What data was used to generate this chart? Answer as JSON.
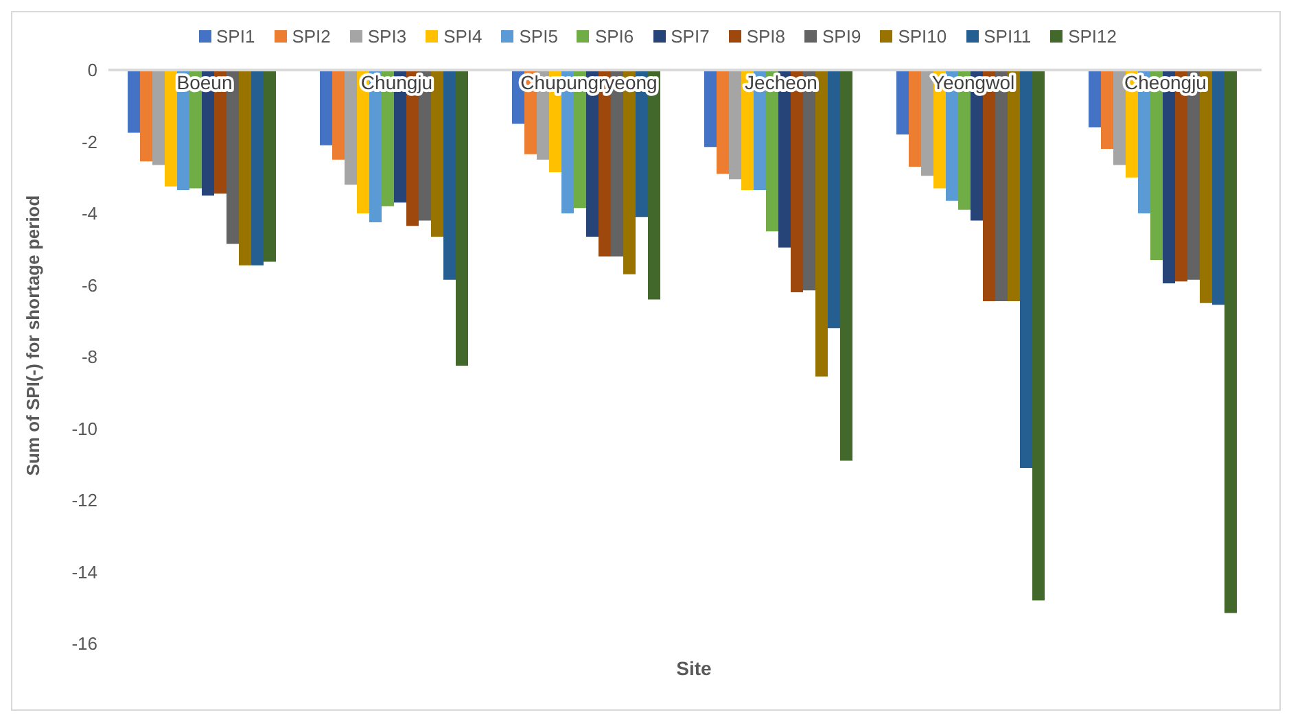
{
  "chart_data": {
    "type": "bar",
    "xlabel": "Site",
    "ylabel": "Sum of SPI(-) for shortage period",
    "categories": [
      "Boeun",
      "Chungju",
      "Chupungryeong",
      "Jecheon",
      "Yeongwol",
      "Cheongju"
    ],
    "ylim": [
      -16,
      0
    ],
    "yticks": [
      -16,
      -14,
      -12,
      -10,
      -8,
      -6,
      -4,
      -2,
      0
    ],
    "grid": false,
    "legend": "top",
    "series": [
      {
        "name": "SPI1",
        "color": "#4472c4",
        "values": [
          -1.75,
          -2.1,
          -1.5,
          -2.15,
          -1.8,
          -1.6
        ]
      },
      {
        "name": "SPI2",
        "color": "#ed7d31",
        "values": [
          -2.55,
          -2.5,
          -2.35,
          -2.9,
          -2.7,
          -2.2
        ]
      },
      {
        "name": "SPI3",
        "color": "#a5a5a5",
        "values": [
          -2.65,
          -3.2,
          -2.5,
          -3.05,
          -2.95,
          -2.65
        ]
      },
      {
        "name": "SPI4",
        "color": "#ffc000",
        "values": [
          -3.25,
          -4.0,
          -2.85,
          -3.35,
          -3.3,
          -3.0
        ]
      },
      {
        "name": "SPI5",
        "color": "#5b9bd5",
        "values": [
          -3.35,
          -4.25,
          -4.0,
          -3.35,
          -3.65,
          -4.0
        ]
      },
      {
        "name": "SPI6",
        "color": "#70ad47",
        "values": [
          -3.3,
          -3.8,
          -3.85,
          -4.5,
          -3.9,
          -5.3
        ]
      },
      {
        "name": "SPI7",
        "color": "#264478",
        "values": [
          -3.5,
          -3.7,
          -4.65,
          -4.95,
          -4.2,
          -5.95
        ]
      },
      {
        "name": "SPI8",
        "color": "#9e480e",
        "values": [
          -3.45,
          -4.35,
          -5.2,
          -6.2,
          -6.45,
          -5.9
        ]
      },
      {
        "name": "SPI9",
        "color": "#636363",
        "values": [
          -4.85,
          -4.2,
          -5.2,
          -6.15,
          -6.45,
          -5.85
        ]
      },
      {
        "name": "SPI10",
        "color": "#997300",
        "values": [
          -5.45,
          -4.65,
          -5.7,
          -8.55,
          -6.45,
          -6.5
        ]
      },
      {
        "name": "SPI11",
        "color": "#255e91",
        "values": [
          -5.45,
          -5.85,
          -4.1,
          -7.2,
          -11.1,
          -6.55
        ]
      },
      {
        "name": "SPI12",
        "color": "#43682b",
        "values": [
          -5.35,
          -8.25,
          -6.4,
          -10.9,
          -14.8,
          -15.15
        ]
      }
    ]
  }
}
